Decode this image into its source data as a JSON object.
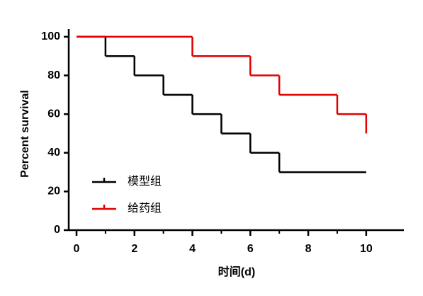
{
  "chart_data": {
    "type": "step",
    "x_label": "时间(d)",
    "y_label": "Percent survival",
    "xlim": [
      0,
      11.3
    ],
    "ylim": [
      0,
      104
    ],
    "xticks": [
      0,
      2,
      4,
      6,
      8,
      10
    ],
    "yticks": [
      0,
      20,
      40,
      60,
      80,
      100
    ],
    "legend": "lower left",
    "series": [
      {
        "name": "模型组",
        "color": "#000000",
        "x": [
          0,
          1,
          2,
          3,
          4,
          5,
          6,
          7,
          10
        ],
        "values": [
          100,
          90,
          80,
          70,
          60,
          50,
          40,
          30,
          30
        ]
      },
      {
        "name": "给药组",
        "color": "#e00000",
        "x": [
          0,
          4,
          6,
          7,
          9,
          10
        ],
        "values": [
          100,
          90,
          80,
          70,
          60,
          50
        ]
      }
    ]
  }
}
